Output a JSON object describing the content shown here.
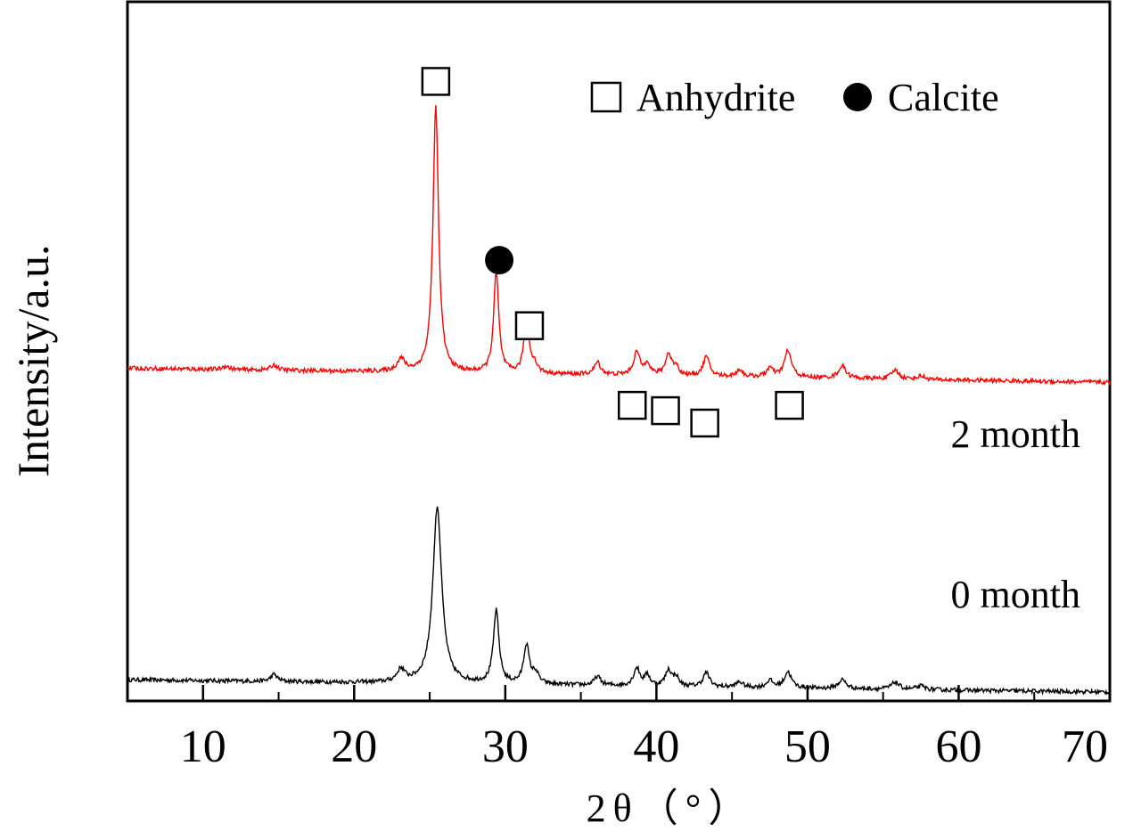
{
  "chart_data": {
    "type": "line",
    "title": "",
    "xlabel": "2θ（°）",
    "ylabel": "Intensity/a.u.",
    "xlim": [
      5,
      70
    ],
    "xticks": [
      10,
      20,
      30,
      40,
      50,
      60,
      70
    ],
    "y_ticks_shown": false,
    "grid": false,
    "legend": {
      "placement": "top-right",
      "entries": [
        {
          "label": "Anhydrite",
          "marker": "open-square"
        },
        {
          "label": "Calcite",
          "marker": "filled-circle"
        }
      ]
    },
    "series": [
      {
        "name": "0 month",
        "color": "#000000",
        "baseline": 7,
        "baseline_end": 0,
        "peaks": [
          {
            "x": 14.7,
            "h": 4,
            "w": 0.25
          },
          {
            "x": 23.1,
            "h": 7,
            "w": 0.3
          },
          {
            "x": 25.5,
            "h": 100,
            "w": 0.35
          },
          {
            "x": 29.4,
            "h": 41,
            "w": 0.22
          },
          {
            "x": 31.4,
            "h": 22,
            "w": 0.22
          },
          {
            "x": 32.0,
            "h": 6,
            "w": 0.25
          },
          {
            "x": 36.1,
            "h": 5,
            "w": 0.25
          },
          {
            "x": 38.7,
            "h": 10,
            "w": 0.25
          },
          {
            "x": 39.4,
            "h": 6,
            "w": 0.2
          },
          {
            "x": 40.8,
            "h": 9,
            "w": 0.25
          },
          {
            "x": 41.3,
            "h": 5,
            "w": 0.2
          },
          {
            "x": 43.3,
            "h": 8,
            "w": 0.25
          },
          {
            "x": 45.5,
            "h": 3,
            "w": 0.25
          },
          {
            "x": 47.5,
            "h": 4,
            "w": 0.25
          },
          {
            "x": 48.7,
            "h": 9,
            "w": 0.28
          },
          {
            "x": 52.3,
            "h": 5,
            "w": 0.3
          },
          {
            "x": 55.8,
            "h": 4,
            "w": 0.3
          },
          {
            "x": 57.5,
            "h": 2,
            "w": 0.3
          }
        ]
      },
      {
        "name": "2 month",
        "color": "#ff0000",
        "baseline": 183,
        "baseline_end": 175,
        "peaks": [
          {
            "x": 11.5,
            "h": 2,
            "w": 0.25
          },
          {
            "x": 14.7,
            "h": 3,
            "w": 0.25
          },
          {
            "x": 23.1,
            "h": 7,
            "w": 0.3
          },
          {
            "x": 25.4,
            "h": 150,
            "w": 0.22
          },
          {
            "x": 29.4,
            "h": 57,
            "w": 0.2
          },
          {
            "x": 31.4,
            "h": 30,
            "w": 0.2
          },
          {
            "x": 31.9,
            "h": 5,
            "w": 0.25
          },
          {
            "x": 36.1,
            "h": 7,
            "w": 0.25
          },
          {
            "x": 38.7,
            "h": 13,
            "w": 0.25
          },
          {
            "x": 39.4,
            "h": 7,
            "w": 0.2
          },
          {
            "x": 40.8,
            "h": 12,
            "w": 0.25
          },
          {
            "x": 41.3,
            "h": 5,
            "w": 0.2
          },
          {
            "x": 43.3,
            "h": 11,
            "w": 0.25
          },
          {
            "x": 45.5,
            "h": 4,
            "w": 0.25
          },
          {
            "x": 47.5,
            "h": 5,
            "w": 0.25
          },
          {
            "x": 48.7,
            "h": 15,
            "w": 0.28
          },
          {
            "x": 52.3,
            "h": 7,
            "w": 0.3
          },
          {
            "x": 55.8,
            "h": 5,
            "w": 0.3
          },
          {
            "x": 57.5,
            "h": 2,
            "w": 0.3
          }
        ]
      }
    ],
    "peak_markers": [
      {
        "x": 25.4,
        "y": 345,
        "marker": "open-square"
      },
      {
        "x": 29.6,
        "y": 244,
        "marker": "filled-circle"
      },
      {
        "x": 31.6,
        "y": 207,
        "marker": "open-square"
      },
      {
        "x": 38.4,
        "y": 162,
        "marker": "open-square"
      },
      {
        "x": 40.6,
        "y": 159,
        "marker": "open-square"
      },
      {
        "x": 43.2,
        "y": 152,
        "marker": "open-square"
      },
      {
        "x": 48.8,
        "y": 162,
        "marker": "open-square"
      }
    ],
    "y_range": [
      -5,
      390
    ]
  }
}
